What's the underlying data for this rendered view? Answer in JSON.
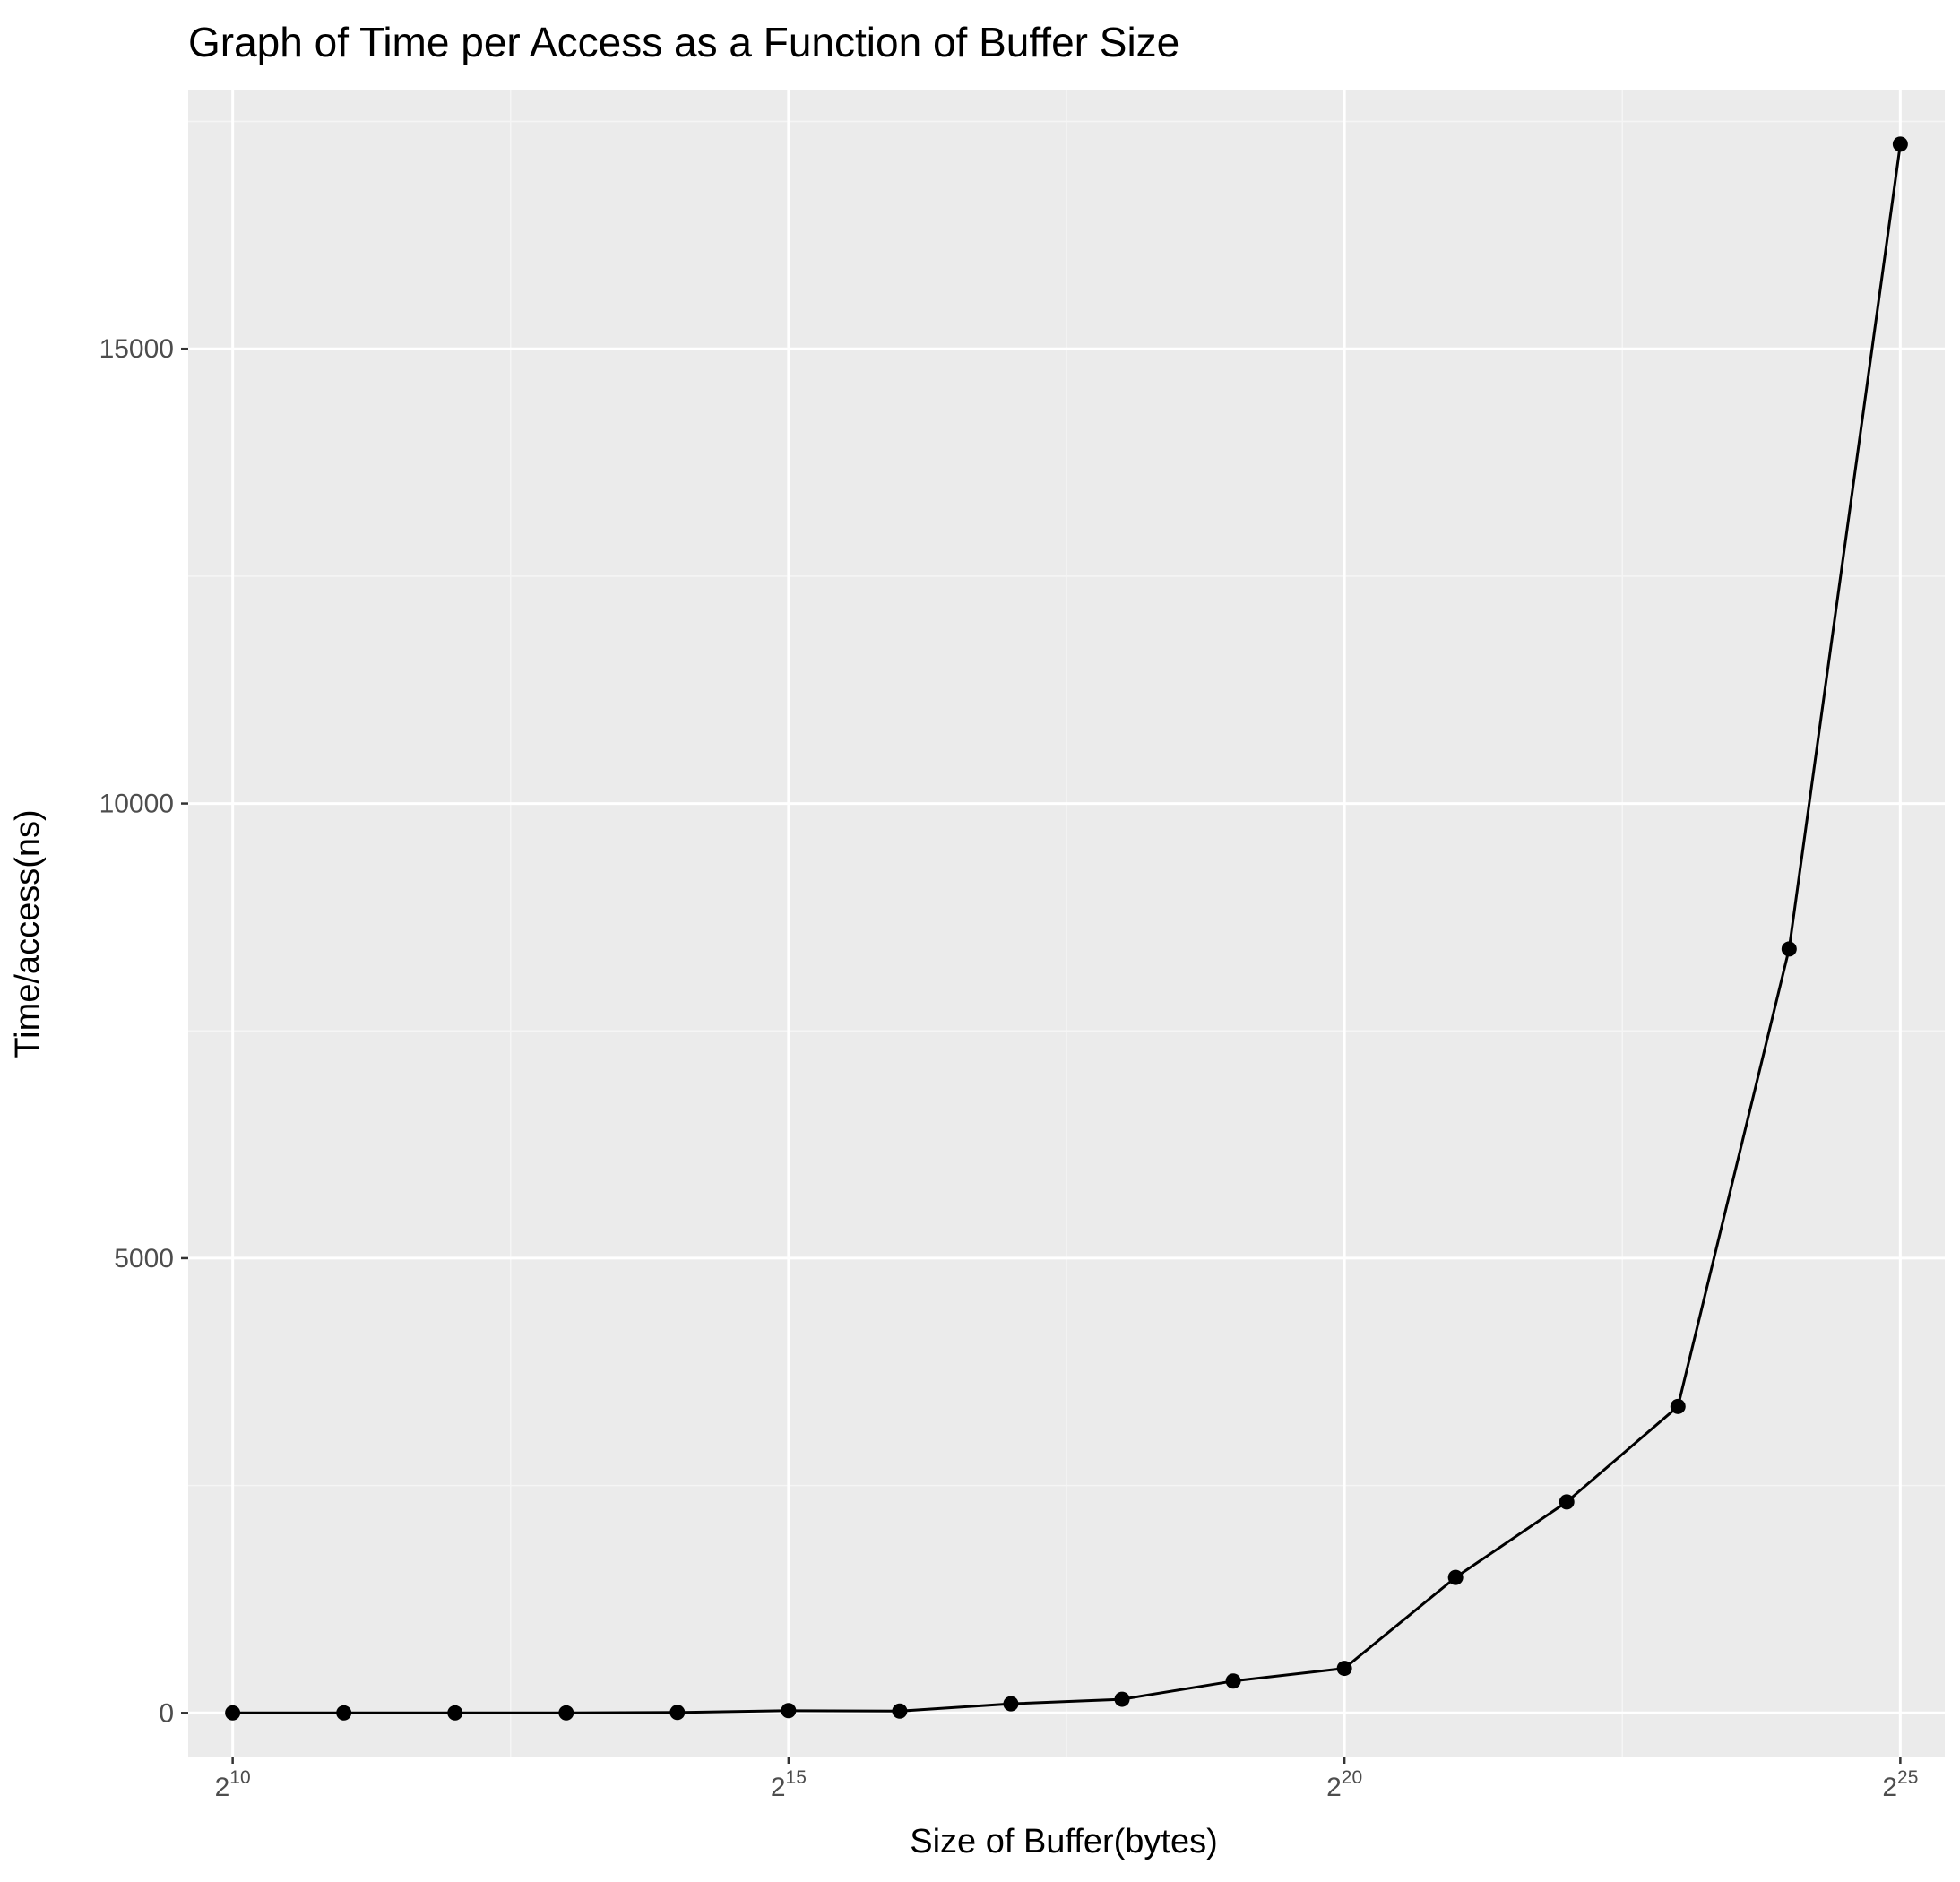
{
  "chart_data": {
    "type": "line",
    "title": "Graph of Time per Access as a Function of Buffer Size",
    "xlabel": "Size of Buffer(bytes)",
    "ylabel": "Time/access(ns)",
    "x_scale": "log2",
    "x_tick_labels": [
      {
        "base": "2",
        "exp": "10",
        "value": 1024
      },
      {
        "base": "2",
        "exp": "15",
        "value": 32768
      },
      {
        "base": "2",
        "exp": "20",
        "value": 1048576
      },
      {
        "base": "2",
        "exp": "25",
        "value": 33554432
      }
    ],
    "y_tick_labels": [
      "0",
      "5000",
      "10000",
      "15000"
    ],
    "y_ticks": [
      0,
      5000,
      10000,
      15000
    ],
    "xlim": [
      776,
      44278362
    ],
    "ylim": [
      -480,
      17850
    ],
    "grid": true,
    "series": [
      {
        "x": [
          1024,
          2048,
          4096,
          8192,
          16384,
          32768,
          65536,
          131072,
          262144,
          524288,
          1048576,
          2097152,
          4194304,
          8388608,
          16777216,
          33554432
        ],
        "y": [
          0,
          0,
          0,
          0,
          5,
          25,
          20,
          100,
          150,
          350,
          490,
          1490,
          2320,
          3370,
          8400,
          17250
        ]
      }
    ],
    "colors": {
      "panel_background": "#ebebeb",
      "grid_major": "#ffffff",
      "grid_minor": "#f5f5f5",
      "line": "#000000",
      "point": "#000000",
      "tick_text": "#4d4d4d"
    }
  }
}
